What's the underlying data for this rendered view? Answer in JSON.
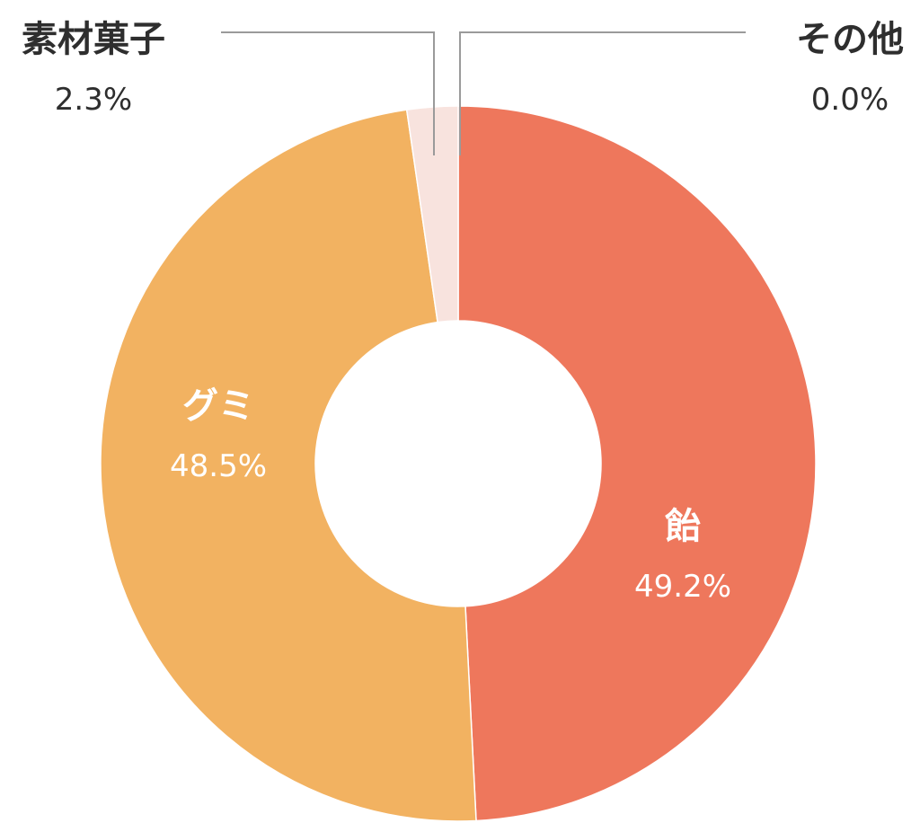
{
  "chart_data": {
    "type": "pie",
    "categories": [
      "飴",
      "グミ",
      "素材菓子",
      "その他"
    ],
    "values": [
      49.2,
      48.5,
      2.3,
      0.0
    ],
    "value_labels": [
      "49.2%",
      "48.5%",
      "2.3%",
      "0.0%"
    ],
    "colors": [
      "#EE775C",
      "#F2B261",
      "#F8E3DE",
      "#EAEAEA"
    ],
    "donut": true,
    "start_angle": "12 o'clock",
    "direction": "clockwise",
    "leader_line_color": "#9A9A9A"
  }
}
